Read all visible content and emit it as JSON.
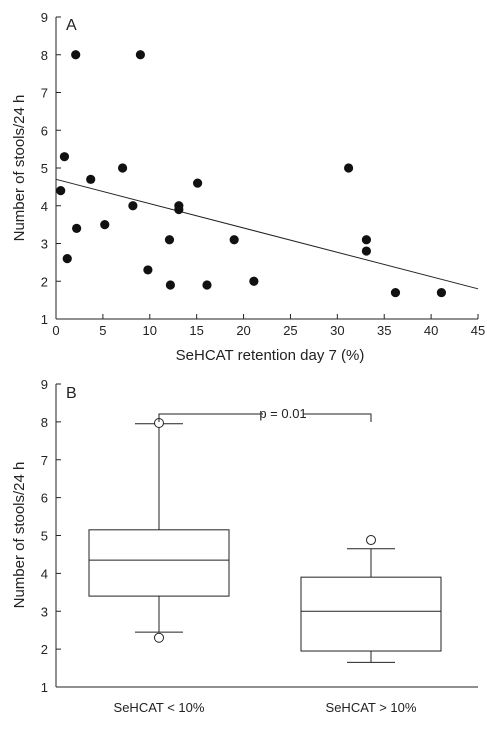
{
  "chart_data": [
    {
      "type": "scatter",
      "panel_label": "A",
      "xlabel": "SeHCAT retention day 7 (%)",
      "ylabel": "Number of stools/24 h",
      "xlim": [
        0,
        45
      ],
      "ylim": [
        1,
        9
      ],
      "x_ticks": [
        0,
        5,
        10,
        15,
        20,
        25,
        30,
        35,
        40,
        45
      ],
      "y_ticks": [
        1,
        2,
        3,
        4,
        5,
        6,
        7,
        8,
        9
      ],
      "x_tick_labels": [
        "0",
        "5",
        "10",
        "15",
        "20",
        "25",
        "30",
        "35",
        "40",
        "45"
      ],
      "y_tick_labels": [
        "1",
        "2",
        "3",
        "4",
        "5",
        "6",
        "7",
        "8",
        "9"
      ],
      "points": [
        {
          "x": 0.5,
          "y": 4.4
        },
        {
          "x": 0.9,
          "y": 5.3
        },
        {
          "x": 1.2,
          "y": 2.6
        },
        {
          "x": 2.1,
          "y": 8.0
        },
        {
          "x": 2.2,
          "y": 3.4
        },
        {
          "x": 3.7,
          "y": 4.7
        },
        {
          "x": 5.2,
          "y": 3.5
        },
        {
          "x": 7.1,
          "y": 5.0
        },
        {
          "x": 8.2,
          "y": 4.0
        },
        {
          "x": 9.0,
          "y": 8.0
        },
        {
          "x": 9.8,
          "y": 2.3
        },
        {
          "x": 12.1,
          "y": 3.1
        },
        {
          "x": 12.2,
          "y": 1.9
        },
        {
          "x": 13.1,
          "y": 4.0
        },
        {
          "x": 13.1,
          "y": 3.9
        },
        {
          "x": 15.1,
          "y": 4.6
        },
        {
          "x": 16.1,
          "y": 1.9
        },
        {
          "x": 19.0,
          "y": 3.1
        },
        {
          "x": 21.1,
          "y": 2.0
        },
        {
          "x": 31.2,
          "y": 5.0
        },
        {
          "x": 33.1,
          "y": 3.1
        },
        {
          "x": 33.1,
          "y": 2.8
        },
        {
          "x": 36.2,
          "y": 1.7
        },
        {
          "x": 41.1,
          "y": 1.7
        }
      ],
      "regression_line": {
        "x": [
          0,
          45
        ],
        "y": [
          4.7,
          1.8
        ]
      },
      "grid": false
    },
    {
      "type": "box",
      "panel_label": "B",
      "xlabel": "",
      "ylabel": "Number of stools/24 h",
      "ylim": [
        1,
        9
      ],
      "y_ticks": [
        1,
        2,
        3,
        4,
        5,
        6,
        7,
        8,
        9
      ],
      "y_tick_labels": [
        "1",
        "2",
        "3",
        "4",
        "5",
        "6",
        "7",
        "8",
        "9"
      ],
      "categories": [
        "SeHCAT < 10%",
        "SeHCAT > 10%"
      ],
      "boxes": [
        {
          "whisker_low": 2.45,
          "q1": 3.4,
          "median": 4.35,
          "q3": 5.15,
          "whisker_high": 7.95,
          "outliers": [
            2.3,
            7.97
          ]
        },
        {
          "whisker_low": 1.65,
          "q1": 1.95,
          "median": 3.0,
          "q3": 3.9,
          "whisker_high": 4.65,
          "outliers": [
            4.88
          ]
        }
      ],
      "annotation": "p = 0.01",
      "grid": false
    }
  ]
}
